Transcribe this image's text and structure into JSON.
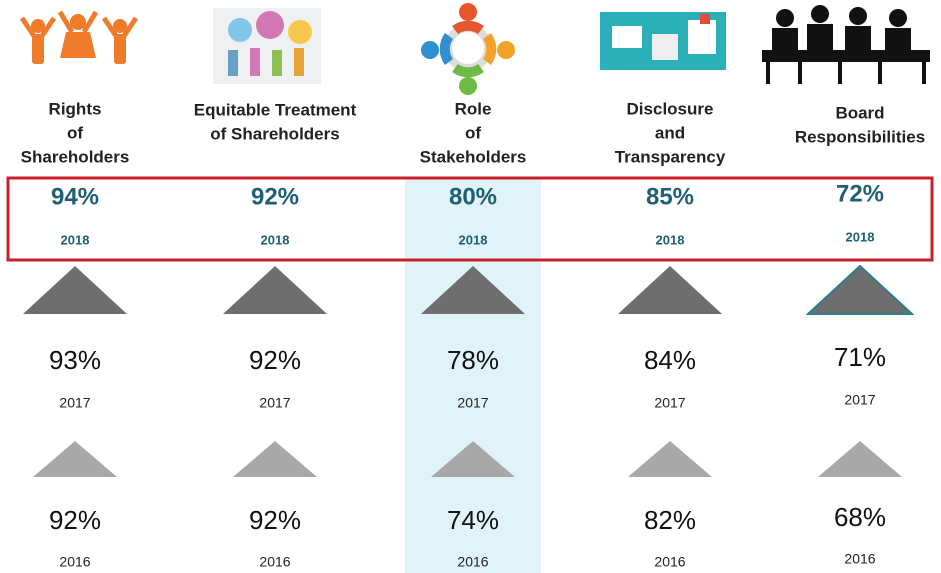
{
  "columns": [
    {
      "title_lines": [
        "Rights",
        "of",
        "Shareholders"
      ],
      "entries": [
        {
          "value": "94%",
          "year": "2018"
        },
        {
          "value": "93%",
          "year": "2017"
        },
        {
          "value": "92%",
          "year": "2016"
        }
      ]
    },
    {
      "title_lines": [
        "Equitable Treatment",
        "of Shareholders"
      ],
      "entries": [
        {
          "value": "92%",
          "year": "2018"
        },
        {
          "value": "92%",
          "year": "2017"
        },
        {
          "value": "92%",
          "year": "2016"
        }
      ]
    },
    {
      "title_lines": [
        "Role",
        "of",
        "Stakeholders"
      ],
      "entries": [
        {
          "value": "80%",
          "year": "2018"
        },
        {
          "value": "78%",
          "year": "2017"
        },
        {
          "value": "74%",
          "year": "2016"
        }
      ]
    },
    {
      "title_lines": [
        "Disclosure",
        "and",
        "Transparency"
      ],
      "entries": [
        {
          "value": "85%",
          "year": "2018"
        },
        {
          "value": "84%",
          "year": "2017"
        },
        {
          "value": "82%",
          "year": "2016"
        }
      ]
    },
    {
      "title_lines": [
        "Board",
        "Responsibilities"
      ],
      "entries": [
        {
          "value": "72%",
          "year": "2018"
        },
        {
          "value": "71%",
          "year": "2017"
        },
        {
          "value": "68%",
          "year": "2016"
        }
      ]
    }
  ]
}
